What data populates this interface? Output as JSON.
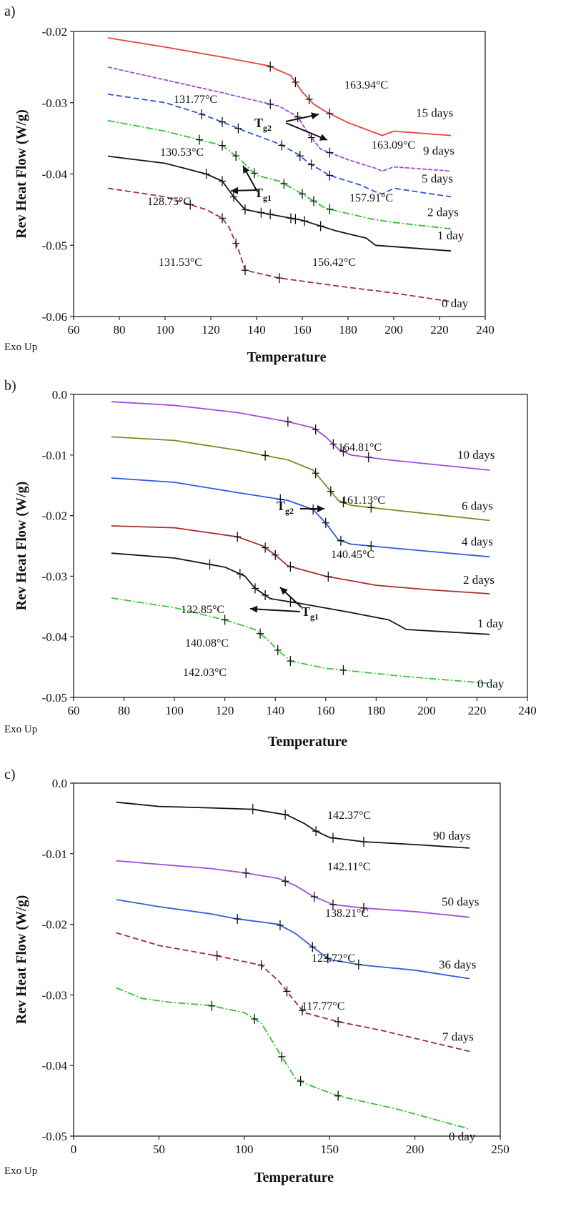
{
  "chart_data": [
    {
      "type": "line",
      "panel_label": "a)",
      "xlabel": "Temperature",
      "ylabel": "Rev Heat Flow (W/g)",
      "exo_label": "Exo Up",
      "xlim": [
        60,
        240
      ],
      "ylim": [
        -0.06,
        -0.02
      ],
      "x_ticks": [
        "60",
        "80",
        "100",
        "120",
        "140",
        "160",
        "180",
        "200",
        "220",
        "240"
      ],
      "y_ticks": [
        "-0.02",
        "-0.03",
        "-0.04",
        "-0.05",
        "-0.06"
      ],
      "grid": false,
      "series": [
        {
          "name": "15 days",
          "color": "#e8433a",
          "dash": "",
          "x": [
            75,
            100,
            125,
            145,
            155,
            160,
            165,
            170,
            180,
            190,
            195,
            200,
            225
          ],
          "y": [
            -0.0209,
            -0.0222,
            -0.0236,
            -0.0248,
            -0.0262,
            -0.0285,
            -0.0302,
            -0.0312,
            -0.0328,
            -0.034,
            -0.0346,
            -0.034,
            -0.0346
          ],
          "markers_x": [
            146,
            157,
            163,
            172
          ]
        },
        {
          "name": "9 days",
          "color": "#9b4fd6",
          "dash": "6 2",
          "x": [
            75,
            100,
            125,
            150,
            158,
            163,
            168,
            180,
            192,
            195,
            200,
            225
          ],
          "y": [
            -0.025,
            -0.0268,
            -0.0286,
            -0.0305,
            -0.032,
            -0.0345,
            -0.0365,
            -0.038,
            -0.0392,
            -0.0396,
            -0.039,
            -0.0396
          ],
          "markers_x": [
            146,
            158,
            164,
            172
          ]
        },
        {
          "name": "5 days",
          "color": "#2e55d9",
          "dash": "8 4",
          "x": [
            75,
            100,
            115,
            125,
            135,
            150,
            158,
            163,
            172,
            185,
            192,
            195,
            200,
            225
          ],
          "y": [
            -0.0288,
            -0.03,
            -0.0315,
            -0.0327,
            -0.034,
            -0.0358,
            -0.0372,
            -0.0385,
            -0.0402,
            -0.0415,
            -0.0425,
            -0.0428,
            -0.042,
            -0.0432
          ],
          "markers_x": [
            116,
            125,
            132,
            151,
            159,
            164,
            172
          ]
        },
        {
          "name": "2 days",
          "color": "#2cc62c",
          "dash": "10 3 2 3",
          "x": [
            75,
            100,
            115,
            125,
            132,
            140,
            150,
            160,
            170,
            190,
            200,
            225
          ],
          "y": [
            -0.0325,
            -0.034,
            -0.0352,
            -0.036,
            -0.0377,
            -0.0402,
            -0.041,
            -0.0428,
            -0.0448,
            -0.0463,
            -0.0468,
            -0.0477
          ],
          "markers_x": [
            115,
            125,
            131,
            139,
            152,
            160,
            165,
            172
          ]
        },
        {
          "name": "1 day",
          "color": "#141414",
          "dash": "",
          "x": [
            75,
            100,
            118,
            125,
            130,
            135,
            145,
            160,
            175,
            188,
            192,
            200,
            225
          ],
          "y": [
            -0.0375,
            -0.0385,
            -0.04,
            -0.041,
            -0.0432,
            -0.045,
            -0.0456,
            -0.0465,
            -0.048,
            -0.049,
            -0.05,
            -0.0502,
            -0.0508
          ],
          "markers_x": [
            118,
            125,
            130,
            135,
            142,
            146,
            155,
            157,
            161,
            168
          ]
        },
        {
          "name": "0 day",
          "color": "#a33131",
          "dash": "8 4",
          "x": [
            75,
            100,
            118,
            125,
            128,
            132,
            135,
            150,
            175,
            200,
            225
          ],
          "y": [
            -0.042,
            -0.0432,
            -0.045,
            -0.0462,
            -0.0475,
            -0.0505,
            -0.0535,
            -0.0546,
            -0.0557,
            -0.0567,
            -0.0579
          ],
          "markers_x": [
            111,
            125,
            131,
            135,
            150
          ]
        }
      ],
      "temperature_labels": [
        "163.94°C",
        "131.77°C",
        "163.09°C",
        "130.53°C",
        "157.91°C",
        "128.75°C",
        "131.53°C",
        "156.42°C"
      ],
      "tg_labels": [
        {
          "main": "T",
          "sub": "g2"
        },
        {
          "main": "T",
          "sub": "g1"
        }
      ]
    },
    {
      "type": "line",
      "panel_label": "b)",
      "xlabel": "Temperature",
      "ylabel": "Rev Heat Flow (W/g)",
      "exo_label": "Exo Up",
      "xlim": [
        60,
        240
      ],
      "ylim": [
        -0.05,
        0.0
      ],
      "x_ticks": [
        "60",
        "80",
        "100",
        "120",
        "140",
        "160",
        "180",
        "200",
        "220",
        "240"
      ],
      "y_ticks": [
        "0.0",
        "-0.01",
        "-0.02",
        "-0.03",
        "-0.04",
        "-0.05"
      ],
      "grid": false,
      "series": [
        {
          "name": "10 days",
          "color": "#a24ee0",
          "dash": "",
          "x": [
            75,
            100,
            125,
            145,
            155,
            160,
            165,
            170,
            185,
            225
          ],
          "y": [
            -0.0012,
            -0.0018,
            -0.003,
            -0.0045,
            -0.0055,
            -0.007,
            -0.009,
            -0.01,
            -0.0108,
            -0.0125
          ],
          "markers_x": [
            145,
            156,
            163,
            167,
            177
          ]
        },
        {
          "name": "6 days",
          "color": "#7f8a22",
          "dash": "",
          "x": [
            75,
            100,
            125,
            145,
            155,
            160,
            165,
            170,
            185,
            225
          ],
          "y": [
            -0.007,
            -0.0076,
            -0.0092,
            -0.0108,
            -0.0125,
            -0.015,
            -0.0175,
            -0.0183,
            -0.019,
            -0.0208
          ],
          "markers_x": [
            136,
            156,
            162,
            167,
            178
          ]
        },
        {
          "name": "4 days",
          "color": "#2f5bd8",
          "dash": "",
          "x": [
            75,
            100,
            125,
            145,
            155,
            160,
            165,
            170,
            185,
            225
          ],
          "y": [
            -0.0138,
            -0.0145,
            -0.0162,
            -0.0175,
            -0.019,
            -0.0212,
            -0.024,
            -0.0247,
            -0.0253,
            -0.0268
          ],
          "markers_x": [
            142,
            155,
            160,
            166,
            178
          ]
        },
        {
          "name": "2 days",
          "color": "#a82e2e",
          "dash": "",
          "x": [
            75,
            100,
            125,
            135,
            140,
            145,
            160,
            180,
            200,
            225
          ],
          "y": [
            -0.0217,
            -0.022,
            -0.0235,
            -0.025,
            -0.0265,
            -0.0283,
            -0.03,
            -0.0315,
            -0.0322,
            -0.0329
          ],
          "markers_x": [
            125,
            136,
            140,
            146,
            161
          ]
        },
        {
          "name": "1 day",
          "color": "#161616",
          "dash": "",
          "x": [
            75,
            100,
            120,
            128,
            132,
            138,
            150,
            170,
            185,
            192,
            225
          ],
          "y": [
            -0.0262,
            -0.027,
            -0.0285,
            -0.03,
            -0.032,
            -0.0337,
            -0.0345,
            -0.036,
            -0.0372,
            -0.0388,
            -0.0396
          ],
          "markers_x": [
            114,
            126,
            132,
            136,
            146
          ]
        },
        {
          "name": "0 day",
          "color": "#35c835",
          "dash": "10 3 2 3",
          "x": [
            75,
            100,
            120,
            132,
            137,
            141,
            146,
            160,
            190,
            225
          ],
          "y": [
            -0.0336,
            -0.0352,
            -0.0372,
            -0.0388,
            -0.0405,
            -0.0422,
            -0.044,
            -0.0452,
            -0.0465,
            -0.0477
          ],
          "markers_x": [
            120,
            134,
            141,
            146,
            167
          ]
        }
      ],
      "temperature_labels": [
        "164.81°C",
        "161.13°C",
        "140.45°C",
        "132.85°C",
        "140.08°C",
        "142.03°C"
      ],
      "tg_labels": [
        {
          "main": "T",
          "sub": "g2"
        },
        {
          "main": "T",
          "sub": "g1"
        }
      ]
    },
    {
      "type": "line",
      "panel_label": "c)",
      "xlabel": "Temperature",
      "ylabel": "Rev Heat Flow (W/g)",
      "exo_label": "Exo Up",
      "xlim": [
        0,
        250
      ],
      "ylim": [
        -0.05,
        0.0
      ],
      "x_ticks": [
        "0",
        "50",
        "100",
        "150",
        "200",
        "250"
      ],
      "y_ticks": [
        "0.0",
        "-0.01",
        "-0.02",
        "-0.03",
        "-0.04",
        "-0.05"
      ],
      "grid": false,
      "series": [
        {
          "name": "90 days",
          "color": "#141414",
          "dash": "",
          "x": [
            25,
            50,
            80,
            105,
            125,
            135,
            142,
            150,
            170,
            200,
            232
          ],
          "y": [
            -0.0027,
            -0.0033,
            -0.0035,
            -0.0037,
            -0.0045,
            -0.0057,
            -0.0068,
            -0.0077,
            -0.0083,
            -0.0087,
            -0.0092
          ],
          "markers_x": [
            105,
            124,
            142,
            152,
            170
          ]
        },
        {
          "name": "50 days",
          "color": "#9c52d6",
          "dash": "",
          "x": [
            25,
            50,
            80,
            100,
            120,
            130,
            140,
            152,
            170,
            200,
            232
          ],
          "y": [
            -0.011,
            -0.0115,
            -0.0121,
            -0.0127,
            -0.0135,
            -0.0145,
            -0.016,
            -0.0172,
            -0.0177,
            -0.0182,
            -0.019
          ],
          "markers_x": [
            101,
            124,
            141,
            152,
            170
          ]
        },
        {
          "name": "36 days",
          "color": "#2e62d4",
          "dash": "",
          "x": [
            25,
            50,
            80,
            95,
            120,
            130,
            140,
            150,
            170,
            200,
            232
          ],
          "y": [
            -0.0165,
            -0.0175,
            -0.0185,
            -0.0192,
            -0.02,
            -0.0213,
            -0.0232,
            -0.025,
            -0.0258,
            -0.0265,
            -0.0277
          ],
          "markers_x": [
            96,
            121,
            140,
            149,
            167
          ]
        },
        {
          "name": "7 days",
          "color": "#a32c2c",
          "dash": "8 4",
          "x": [
            25,
            50,
            85,
            110,
            120,
            130,
            135,
            155,
            180,
            232
          ],
          "y": [
            -0.0212,
            -0.023,
            -0.0245,
            -0.0258,
            -0.028,
            -0.031,
            -0.0325,
            -0.0338,
            -0.035,
            -0.038
          ],
          "markers_x": [
            84,
            110,
            125,
            134,
            155
          ]
        },
        {
          "name": "0 day",
          "color": "#30c430",
          "dash": "10 3 2 3",
          "x": [
            25,
            40,
            55,
            80,
            100,
            110,
            120,
            130,
            135,
            155,
            190,
            232
          ],
          "y": [
            -0.029,
            -0.0305,
            -0.031,
            -0.0315,
            -0.0325,
            -0.034,
            -0.038,
            -0.0418,
            -0.0425,
            -0.0443,
            -0.0462,
            -0.049
          ],
          "markers_x": [
            81,
            106,
            122,
            133,
            155
          ]
        }
      ],
      "temperature_labels": [
        "142.37°C",
        "142.11°C",
        "138.21°C",
        "123.72°C",
        "117.77°C"
      ],
      "tg_labels": []
    }
  ]
}
